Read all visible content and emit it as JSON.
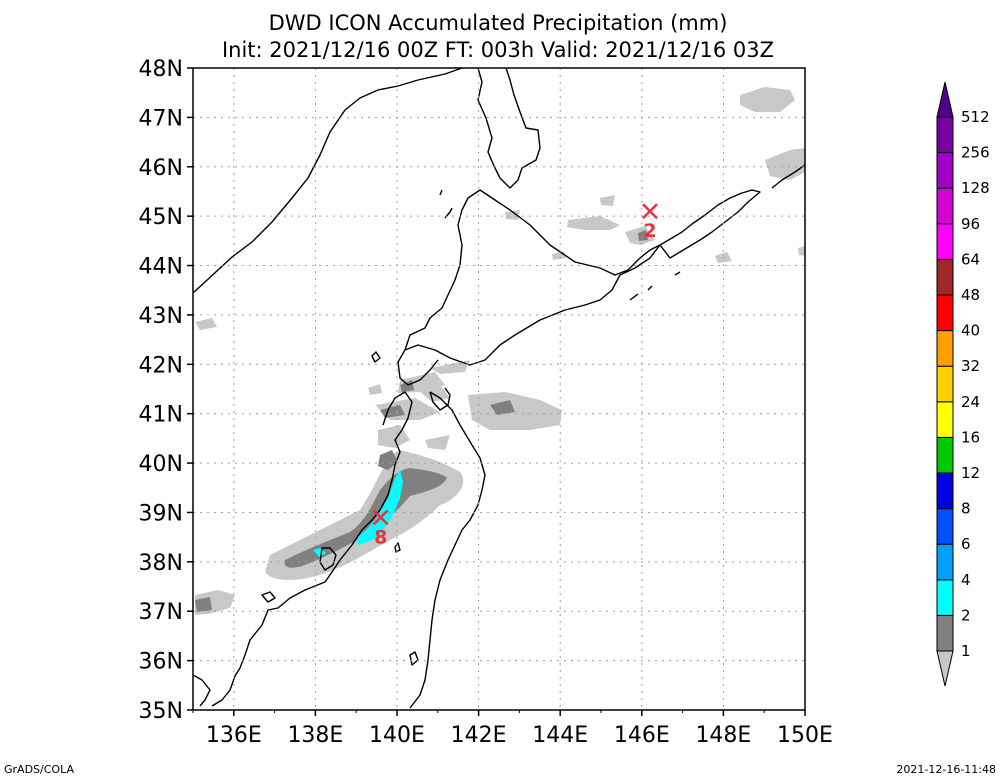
{
  "title": {
    "line1": "DWD ICON Accumulated Precipitation (mm)",
    "line2": "Init: 2021/12/16 00Z  FT: 003h  Valid: 2021/12/16 03Z"
  },
  "map": {
    "lon_range": [
      135,
      150
    ],
    "lat_range": [
      35,
      48
    ],
    "lon_ticks": [
      "136E",
      "138E",
      "140E",
      "142E",
      "144E",
      "146E",
      "148E",
      "150E"
    ],
    "lat_ticks": [
      "35N",
      "36N",
      "37N",
      "38N",
      "39N",
      "40N",
      "41N",
      "42N",
      "43N",
      "44N",
      "45N",
      "46N",
      "47N",
      "48N"
    ],
    "markers": [
      {
        "label": "2",
        "lon": 146.2,
        "lat": 45.1,
        "color": "#e8333c"
      },
      {
        "label": "8",
        "lon": 139.6,
        "lat": 38.9,
        "color": "#e8333c"
      }
    ]
  },
  "colorbar": {
    "levels": [
      "1",
      "2",
      "4",
      "6",
      "8",
      "12",
      "16",
      "24",
      "32",
      "40",
      "48",
      "64",
      "96",
      "128",
      "256",
      "512"
    ],
    "colors": [
      "#c8c8c8",
      "#808080",
      "#00ffff",
      "#00a0ff",
      "#0050ff",
      "#0000e0",
      "#00c800",
      "#ffff00",
      "#ffd200",
      "#ffa000",
      "#ff0000",
      "#a02828",
      "#ff00ff",
      "#d200d2",
      "#a000c8",
      "#7800a0",
      "#50008c"
    ]
  },
  "footer": {
    "left": "GrADS/COLA",
    "right": "2021-12-16-11:48"
  }
}
